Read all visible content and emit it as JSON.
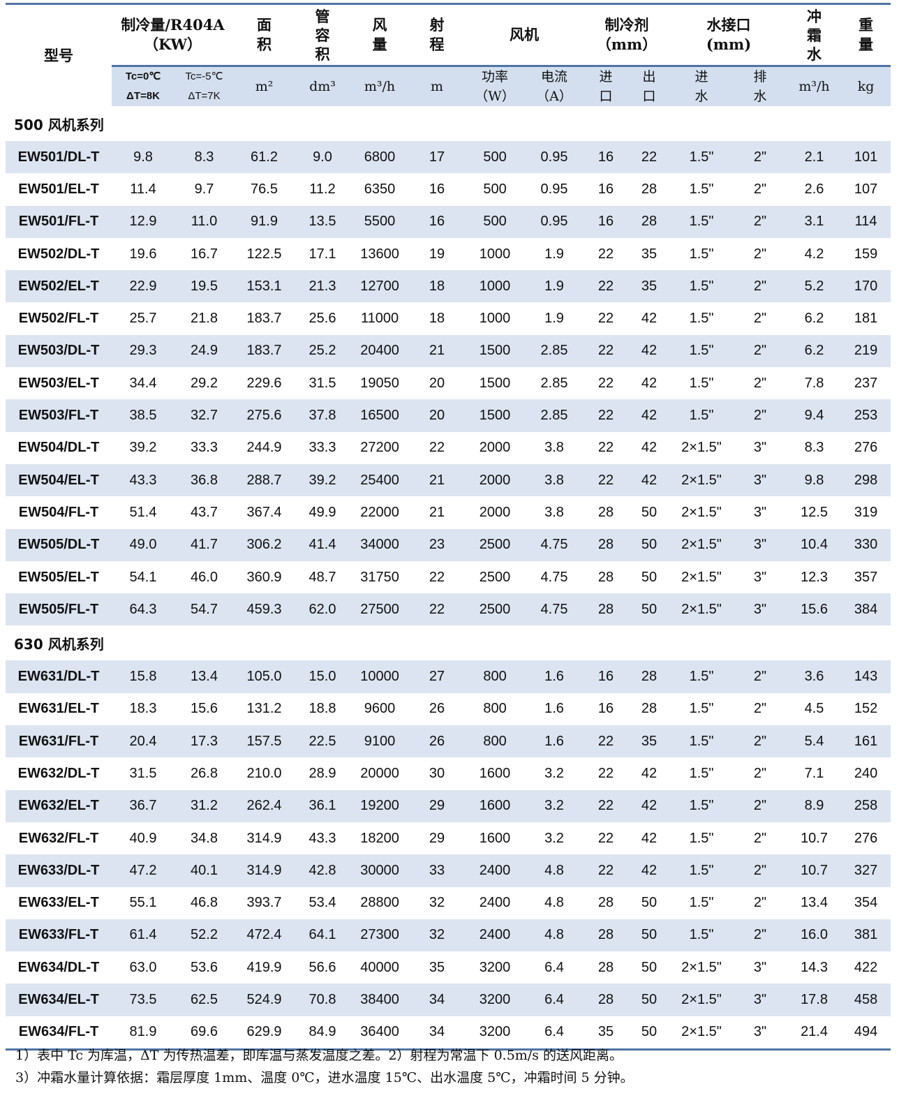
{
  "header": {
    "model": "型号",
    "capacity": "制冷量/R404A\n（KW）",
    "area": "面\n积",
    "tube_volume": "管\n容\n积",
    "airflow": "风\n量",
    "throw": "射\n程",
    "fan": "风机",
    "refrigerant": "制冷剂\n（mm）",
    "water_conn": "水接口\n(mm)",
    "defrost_water": "冲\n霜\n水",
    "weight": "重\n量"
  },
  "subheader": {
    "cap1": "Tc=0℃\nΔT=8K",
    "cap2": "Tc=-5℃\nΔT=7K",
    "area_unit": "m²",
    "vol_unit": "dm³",
    "air_unit": "m³/h",
    "throw_unit": "m",
    "power": "功率\n（W）",
    "current": "电流\n（A）",
    "ref_in": "进\n口",
    "ref_out": "出\n口",
    "water_in": "进\n水",
    "drain": "排\n水",
    "defrost_unit": "m³/h",
    "weight_unit": "kg"
  },
  "series": [
    {
      "label": "500 风机系列",
      "rows": [
        [
          "EW501/DL-T",
          "9.8",
          "8.3",
          "61.2",
          "9.0",
          "6800",
          "17",
          "500",
          "0.95",
          "16",
          "22",
          "1.5\"",
          "2\"",
          "2.1",
          "101"
        ],
        [
          "EW501/EL-T",
          "11.4",
          "9.7",
          "76.5",
          "11.2",
          "6350",
          "16",
          "500",
          "0.95",
          "16",
          "28",
          "1.5\"",
          "2\"",
          "2.6",
          "107"
        ],
        [
          "EW501/FL-T",
          "12.9",
          "11.0",
          "91.9",
          "13.5",
          "5500",
          "16",
          "500",
          "0.95",
          "16",
          "28",
          "1.5\"",
          "2\"",
          "3.1",
          "114"
        ],
        [
          "EW502/DL-T",
          "19.6",
          "16.7",
          "122.5",
          "17.1",
          "13600",
          "19",
          "1000",
          "1.9",
          "22",
          "35",
          "1.5\"",
          "2\"",
          "4.2",
          "159"
        ],
        [
          "EW502/EL-T",
          "22.9",
          "19.5",
          "153.1",
          "21.3",
          "12700",
          "18",
          "1000",
          "1.9",
          "22",
          "35",
          "1.5\"",
          "2\"",
          "5.2",
          "170"
        ],
        [
          "EW502/FL-T",
          "25.7",
          "21.8",
          "183.7",
          "25.6",
          "11000",
          "18",
          "1000",
          "1.9",
          "22",
          "42",
          "1.5\"",
          "2\"",
          "6.2",
          "181"
        ],
        [
          "EW503/DL-T",
          "29.3",
          "24.9",
          "183.7",
          "25.2",
          "20400",
          "21",
          "1500",
          "2.85",
          "22",
          "42",
          "1.5\"",
          "2\"",
          "6.2",
          "219"
        ],
        [
          "EW503/EL-T",
          "34.4",
          "29.2",
          "229.6",
          "31.5",
          "19050",
          "20",
          "1500",
          "2.85",
          "22",
          "42",
          "1.5\"",
          "2\"",
          "7.8",
          "237"
        ],
        [
          "EW503/FL-T",
          "38.5",
          "32.7",
          "275.6",
          "37.8",
          "16500",
          "20",
          "1500",
          "2.85",
          "22",
          "42",
          "1.5\"",
          "2\"",
          "9.4",
          "253"
        ],
        [
          "EW504/DL-T",
          "39.2",
          "33.3",
          "244.9",
          "33.3",
          "27200",
          "22",
          "2000",
          "3.8",
          "22",
          "42",
          "2×1.5\"",
          "3\"",
          "8.3",
          "276"
        ],
        [
          "EW504/EL-T",
          "43.3",
          "36.8",
          "288.7",
          "39.2",
          "25400",
          "21",
          "2000",
          "3.8",
          "22",
          "42",
          "2×1.5\"",
          "3\"",
          "9.8",
          "298"
        ],
        [
          "EW504/FL-T",
          "51.4",
          "43.7",
          "367.4",
          "49.9",
          "22000",
          "21",
          "2000",
          "3.8",
          "28",
          "50",
          "2×1.5\"",
          "3\"",
          "12.5",
          "319"
        ],
        [
          "EW505/DL-T",
          "49.0",
          "41.7",
          "306.2",
          "41.4",
          "34000",
          "23",
          "2500",
          "4.75",
          "28",
          "50",
          "2×1.5\"",
          "3\"",
          "10.4",
          "330"
        ],
        [
          "EW505/EL-T",
          "54.1",
          "46.0",
          "360.9",
          "48.7",
          "31750",
          "22",
          "2500",
          "4.75",
          "28",
          "50",
          "2×1.5\"",
          "3\"",
          "12.3",
          "357"
        ],
        [
          "EW505/FL-T",
          "64.3",
          "54.7",
          "459.3",
          "62.0",
          "27500",
          "22",
          "2500",
          "4.75",
          "28",
          "50",
          "2×1.5\"",
          "3\"",
          "15.6",
          "384"
        ]
      ]
    },
    {
      "label": "630 风机系列",
      "rows": [
        [
          "EW631/DL-T",
          "15.8",
          "13.4",
          "105.0",
          "15.0",
          "10000",
          "27",
          "800",
          "1.6",
          "16",
          "28",
          "1.5\"",
          "2\"",
          "3.6",
          "143"
        ],
        [
          "EW631/EL-T",
          "18.3",
          "15.6",
          "131.2",
          "18.8",
          "9600",
          "26",
          "800",
          "1.6",
          "16",
          "28",
          "1.5\"",
          "2\"",
          "4.5",
          "152"
        ],
        [
          "EW631/FL-T",
          "20.4",
          "17.3",
          "157.5",
          "22.5",
          "9100",
          "26",
          "800",
          "1.6",
          "22",
          "35",
          "1.5\"",
          "2\"",
          "5.4",
          "161"
        ],
        [
          "EW632/DL-T",
          "31.5",
          "26.8",
          "210.0",
          "28.9",
          "20000",
          "30",
          "1600",
          "3.2",
          "22",
          "42",
          "1.5\"",
          "2\"",
          "7.1",
          "240"
        ],
        [
          "EW632/EL-T",
          "36.7",
          "31.2",
          "262.4",
          "36.1",
          "19200",
          "29",
          "1600",
          "3.2",
          "22",
          "42",
          "1.5\"",
          "2\"",
          "8.9",
          "258"
        ],
        [
          "EW632/FL-T",
          "40.9",
          "34.8",
          "314.9",
          "43.3",
          "18200",
          "29",
          "1600",
          "3.2",
          "22",
          "42",
          "1.5\"",
          "2\"",
          "10.7",
          "276"
        ],
        [
          "EW633/DL-T",
          "47.2",
          "40.1",
          "314.9",
          "42.8",
          "30000",
          "33",
          "2400",
          "4.8",
          "22",
          "42",
          "1.5\"",
          "2\"",
          "10.7",
          "327"
        ],
        [
          "EW633/EL-T",
          "55.1",
          "46.8",
          "393.7",
          "53.4",
          "28800",
          "32",
          "2400",
          "4.8",
          "28",
          "50",
          "1.5\"",
          "2\"",
          "13.4",
          "354"
        ],
        [
          "EW633/FL-T",
          "61.4",
          "52.2",
          "472.4",
          "64.1",
          "27300",
          "32",
          "2400",
          "4.8",
          "28",
          "50",
          "1.5\"",
          "2\"",
          "16.0",
          "381"
        ],
        [
          "EW634/DL-T",
          "63.0",
          "53.6",
          "419.9",
          "56.6",
          "40000",
          "35",
          "3200",
          "6.4",
          "28",
          "50",
          "2×1.5\"",
          "3\"",
          "14.3",
          "422"
        ],
        [
          "EW634/EL-T",
          "73.5",
          "62.5",
          "524.9",
          "70.8",
          "38400",
          "34",
          "3200",
          "6.4",
          "28",
          "50",
          "2×1.5\"",
          "3\"",
          "17.8",
          "458"
        ],
        [
          "EW634/FL-T",
          "81.9",
          "69.6",
          "629.9",
          "84.9",
          "36400",
          "34",
          "3200",
          "6.4",
          "35",
          "50",
          "2×1.5\"",
          "3\"",
          "21.4",
          "494"
        ]
      ]
    }
  ],
  "notes": [
    "1）表中 Tc 为库温，ΔT 为传热温差，即库温与蒸发温度之差。2）射程为常温下 0.5m/s 的送风距离。",
    "3）冲霜水量计算依据：霜层厚度 1mm、温度 0℃，进水温度 15℃、出水温度 5℃，冲霜时间 5 分钟。"
  ],
  "colors": {
    "rule": "#4f74a3",
    "shade": "#dbe4f0",
    "subheader": "#d3dfee"
  }
}
